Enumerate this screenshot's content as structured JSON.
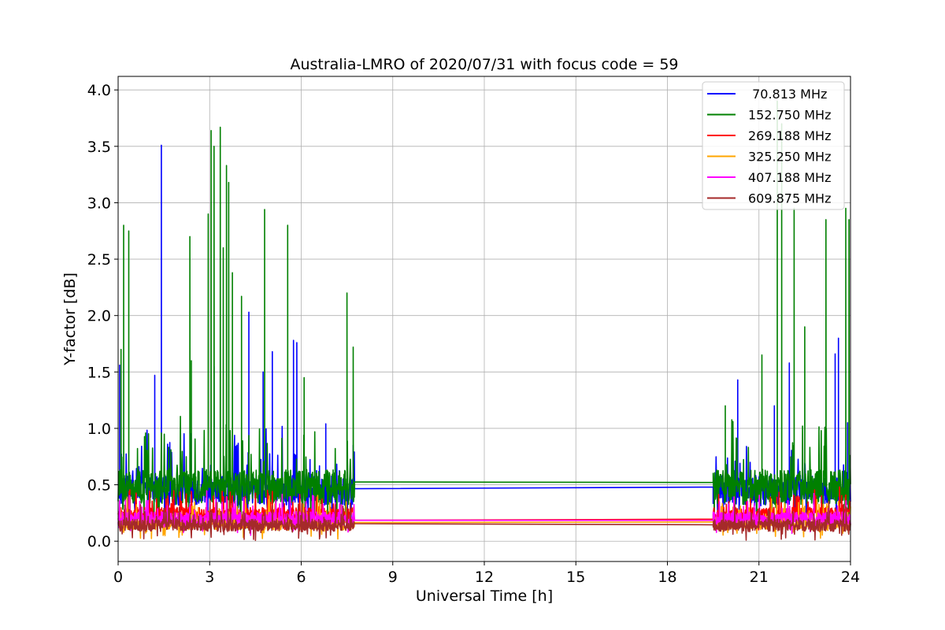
{
  "chart_data": {
    "type": "line",
    "title": "Australia-LMRO of 2020/07/31 with focus code = 59",
    "xlabel": "Universal Time [h]",
    "ylabel": "Y-factor [dB]",
    "xlim": [
      0,
      24
    ],
    "ylim": [
      -0.18,
      4.12
    ],
    "x_ticks": [
      0,
      3,
      6,
      9,
      12,
      15,
      18,
      21,
      24
    ],
    "x_tick_labels": [
      "0",
      "3",
      "6",
      "9",
      "12",
      "15",
      "18",
      "21",
      "24"
    ],
    "y_ticks": [
      0.0,
      0.5,
      1.0,
      1.5,
      2.0,
      2.5,
      3.0,
      3.5,
      4.0
    ],
    "y_tick_labels": [
      "0.0",
      "0.5",
      "1.0",
      "1.5",
      "2.0",
      "2.5",
      "3.0",
      "3.5",
      "4.0"
    ],
    "grid": true,
    "legend_position": "top-right",
    "observation_windows": [
      [
        0.0,
        7.75
      ],
      [
        19.5,
        24.0
      ]
    ],
    "series": [
      {
        "name": " 70.813 MHz",
        "color": "#0000ff",
        "baseline": 0.45,
        "noise": 0.22,
        "gap_values": [
          0.465,
          0.48
        ],
        "peaks": [
          [
            0.05,
            1.56
          ],
          [
            1.42,
            3.51
          ],
          [
            1.2,
            1.47
          ],
          [
            3.15,
            1.55
          ],
          [
            4.28,
            2.03
          ],
          [
            4.75,
            1.5
          ],
          [
            5.05,
            1.68
          ],
          [
            5.75,
            1.78
          ],
          [
            5.85,
            1.76
          ],
          [
            6.8,
            1.04
          ],
          [
            7.7,
            0.85
          ],
          [
            20.3,
            1.43
          ],
          [
            21.5,
            1.2
          ],
          [
            22.0,
            1.58
          ],
          [
            23.5,
            1.66
          ],
          [
            23.6,
            1.8
          ],
          [
            23.9,
            1.05
          ]
        ]
      },
      {
        "name": "152.750 MHz",
        "color": "#008000",
        "baseline": 0.48,
        "noise": 0.26,
        "gap_values": [
          0.525,
          0.52
        ],
        "peaks": [
          [
            0.18,
            2.8
          ],
          [
            0.35,
            2.75
          ],
          [
            0.1,
            1.7
          ],
          [
            2.35,
            2.7
          ],
          [
            2.4,
            1.6
          ],
          [
            3.05,
            3.64
          ],
          [
            3.15,
            3.5
          ],
          [
            3.35,
            3.67
          ],
          [
            3.55,
            3.33
          ],
          [
            3.62,
            3.18
          ],
          [
            2.95,
            2.9
          ],
          [
            3.45,
            2.6
          ],
          [
            3.75,
            2.38
          ],
          [
            4.05,
            2.17
          ],
          [
            4.8,
            2.94
          ],
          [
            5.55,
            2.8
          ],
          [
            6.1,
            1.45
          ],
          [
            7.5,
            2.2
          ],
          [
            7.7,
            1.72
          ],
          [
            21.6,
            3.9
          ],
          [
            21.75,
            3.7
          ],
          [
            22.15,
            2.95
          ],
          [
            23.2,
            2.85
          ],
          [
            23.85,
            2.95
          ],
          [
            23.95,
            2.85
          ],
          [
            22.5,
            1.9
          ],
          [
            21.1,
            1.65
          ],
          [
            19.9,
            1.2
          ]
        ]
      },
      {
        "name": "269.188 MHz",
        "color": "#ff0000",
        "baseline": 0.24,
        "noise": 0.1,
        "gap_values": [
          0.185,
          0.195
        ],
        "peaks": []
      },
      {
        "name": "325.250 MHz",
        "color": "#ffa500",
        "baseline": 0.16,
        "noise": 0.1,
        "gap_values": [
          0.165,
          0.17
        ],
        "peaks": []
      },
      {
        "name": "407.188 MHz",
        "color": "#ff00ff",
        "baseline": 0.2,
        "noise": 0.1,
        "gap_values": [
          0.185,
          0.185
        ],
        "peaks": []
      },
      {
        "name": "609.875 MHz",
        "color": "#a52a2a",
        "baseline": 0.14,
        "noise": 0.09,
        "gap_values": [
          0.155,
          0.145
        ],
        "peaks": []
      }
    ]
  }
}
